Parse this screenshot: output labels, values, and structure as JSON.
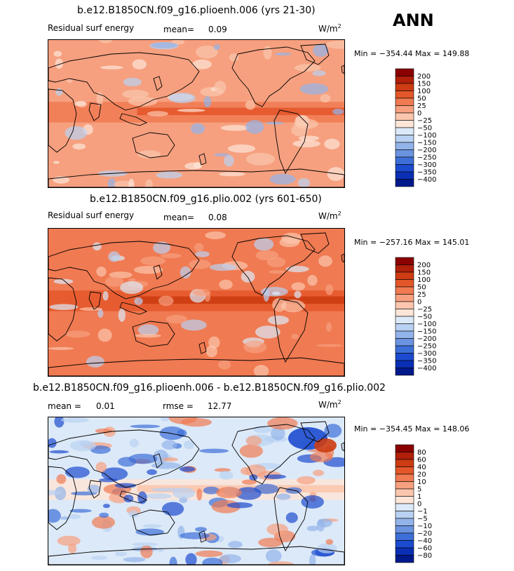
{
  "season": "ANN",
  "panels": [
    {
      "title": "b.e12.B1850CN.f09_g16.plioenh.006 (yrs 21-30)",
      "field": "Residual surf energy",
      "mean_label": "mean=",
      "mean": "0.09",
      "units": "W/m",
      "units_exp": "2",
      "min_label": "Min =",
      "min": "−354.44",
      "max_label": "Max =",
      "max": "149.88"
    },
    {
      "title": "b.e12.B1850CN.f09_g16.plio.002 (yrs 601-650)",
      "field": "Residual surf energy",
      "mean_label": "mean=",
      "mean": "0.08",
      "units": "W/m",
      "units_exp": "2",
      "min_label": "Min =",
      "min": "−257.16",
      "max_label": "Max =",
      "max": "145.01"
    },
    {
      "title": "b.e12.B1850CN.f09_g16.plioenh.006 - b.e12.B1850CN.f09_g16.plio.002",
      "mean_label": "mean =",
      "mean": "0.01",
      "rmse_label": "rmse =",
      "rmse": "12.77",
      "units": "W/m",
      "units_exp": "2",
      "min_label": "Min =",
      "min": "−354.45",
      "max_label": "Max =",
      "max": "148.06"
    }
  ],
  "chart_data": [
    {
      "type": "heatmap",
      "title": "b.e12.B1850CN.f09_g16.plioenh.006 (yrs 21-30)",
      "variable": "Residual surf energy",
      "units": "W/m^2",
      "mean": 0.09,
      "min": -354.44,
      "max": 149.88,
      "colorbar_levels": [
        200,
        150,
        100,
        50,
        25,
        0,
        -25,
        -50,
        -100,
        -150,
        -200,
        -250,
        -300,
        -350,
        -400
      ],
      "colorbar_labels": [
        "200",
        "150",
        "100",
        "50",
        "25",
        "0",
        "−25",
        "−50",
        "−100",
        "−150",
        "−200",
        "−250",
        "−300",
        "−350",
        "−400"
      ],
      "colors": [
        "#8b0000",
        "#b0200a",
        "#cd3c12",
        "#e4572a",
        "#f07a52",
        "#f6a07f",
        "#fbc6ad",
        "#fde5d8",
        "#dce9f8",
        "#b9d1f2",
        "#93b4ea",
        "#6a93e0",
        "#3d6fd8",
        "#1c4bcf",
        "#0a2fb5",
        "#001a8c"
      ]
    },
    {
      "type": "heatmap",
      "title": "b.e12.B1850CN.f09_g16.plio.002 (yrs 601-650)",
      "variable": "Residual surf energy",
      "units": "W/m^2",
      "mean": 0.08,
      "min": -257.16,
      "max": 145.01,
      "colorbar_levels": [
        200,
        150,
        100,
        50,
        25,
        0,
        -25,
        -50,
        -100,
        -150,
        -200,
        -250,
        -300,
        -350,
        -400
      ],
      "colorbar_labels": [
        "200",
        "150",
        "100",
        "50",
        "25",
        "0",
        "−25",
        "−50",
        "−100",
        "−150",
        "−200",
        "−250",
        "−300",
        "−350",
        "−400"
      ],
      "colors": [
        "#8b0000",
        "#b0200a",
        "#cd3c12",
        "#e4572a",
        "#f07a52",
        "#f6a07f",
        "#fbc6ad",
        "#fde5d8",
        "#dce9f8",
        "#b9d1f2",
        "#93b4ea",
        "#6a93e0",
        "#3d6fd8",
        "#1c4bcf",
        "#0a2fb5",
        "#001a8c"
      ]
    },
    {
      "type": "heatmap",
      "title": "b.e12.B1850CN.f09_g16.plioenh.006 - b.e12.B1850CN.f09_g16.plio.002",
      "units": "W/m^2",
      "mean": 0.01,
      "rmse": 12.77,
      "min": -354.45,
      "max": 148.06,
      "colorbar_levels": [
        80,
        60,
        40,
        20,
        10,
        5,
        1,
        0,
        -1,
        -5,
        -10,
        -20,
        -40,
        -60,
        -80
      ],
      "colorbar_labels": [
        "80",
        "60",
        "40",
        "20",
        "10",
        "5",
        "1",
        "0",
        "−1",
        "−5",
        "−10",
        "−20",
        "−40",
        "−60",
        "−80"
      ],
      "colors": [
        "#8b0000",
        "#b0200a",
        "#cd3c12",
        "#e4572a",
        "#f07a52",
        "#f6a07f",
        "#fbc6ad",
        "#fde5d8",
        "#dce9f8",
        "#b9d1f2",
        "#93b4ea",
        "#6a93e0",
        "#3d6fd8",
        "#1c4bcf",
        "#0a2fb5",
        "#001a8c"
      ]
    }
  ]
}
